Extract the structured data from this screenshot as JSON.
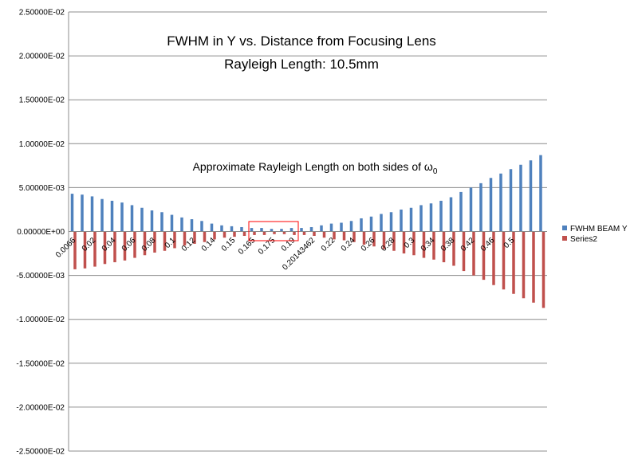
{
  "chart_data": {
    "type": "bar",
    "title_lines": [
      "FWHM in Y vs. Distance from Focusing Lens",
      "Rayleigh Length: 10.5mm"
    ],
    "annotation": {
      "text": "Approximate Rayleigh Length on both sides of ω",
      "subscript": "0"
    },
    "ylim": [
      -0.025,
      0.025
    ],
    "yticks": [
      0.025,
      0.02,
      0.015,
      0.01,
      0.005,
      0,
      -0.005,
      -0.01,
      -0.015,
      -0.02,
      -0.025
    ],
    "ytick_labels": [
      "2.50000E-02",
      "2.00000E-02",
      "1.50000E-02",
      "1.00000E-02",
      "5.00000E-03",
      "0.00000E+00",
      "-5.00000E-03",
      "-1.00000E-02",
      "-1.50000E-02",
      "-2.00000E-02",
      "-2.50000E-02"
    ],
    "x_tick_labels": [
      "0.0066",
      "0.02",
      "0.04",
      "0.06",
      "0.08",
      "0.1",
      "0.12",
      "0.14",
      "0.15",
      "0.165",
      "0.175",
      "0.19",
      "0.20143462",
      "0.22",
      "0.24",
      "0.26",
      "0.28",
      "0.3",
      "0.34",
      "0.38",
      "0.42",
      "0.46",
      "0.5"
    ],
    "series": [
      {
        "name": "FWHM BEAM Y",
        "color": "#4F81BD",
        "values": [
          0.0043,
          0.0042,
          0.004,
          0.0037,
          0.0035,
          0.0033,
          0.003,
          0.0027,
          0.0024,
          0.0022,
          0.0019,
          0.0016,
          0.0014,
          0.0012,
          0.0009,
          0.0007,
          0.0006,
          0.0005,
          0.0004,
          0.0004,
          0.0003,
          0.0003,
          0.0004,
          0.0004,
          0.0005,
          0.0007,
          0.0009,
          0.001,
          0.0012,
          0.0015,
          0.0017,
          0.002,
          0.0022,
          0.0025,
          0.0027,
          0.003,
          0.0032,
          0.0035,
          0.0039,
          0.0045,
          0.005,
          0.0055,
          0.0061,
          0.0066,
          0.0071,
          0.0076,
          0.0081,
          0.0087
        ]
      },
      {
        "name": "Series2",
        "color": "#C0504D",
        "values": [
          -0.0043,
          -0.0042,
          -0.004,
          -0.0037,
          -0.0035,
          -0.0033,
          -0.003,
          -0.0027,
          -0.0024,
          -0.0022,
          -0.0019,
          -0.0016,
          -0.0014,
          -0.0012,
          -0.0009,
          -0.0007,
          -0.0006,
          -0.0005,
          -0.0004,
          -0.0004,
          -0.0003,
          -0.0003,
          -0.0004,
          -0.0004,
          -0.0005,
          -0.0007,
          -0.0009,
          -0.001,
          -0.0012,
          -0.0015,
          -0.0017,
          -0.002,
          -0.0022,
          -0.0025,
          -0.0027,
          -0.003,
          -0.0032,
          -0.0035,
          -0.0039,
          -0.0045,
          -0.005,
          -0.0055,
          -0.0061,
          -0.0066,
          -0.0071,
          -0.0076,
          -0.0081,
          -0.0087
        ]
      }
    ],
    "grid": true,
    "legend_position": "right"
  }
}
